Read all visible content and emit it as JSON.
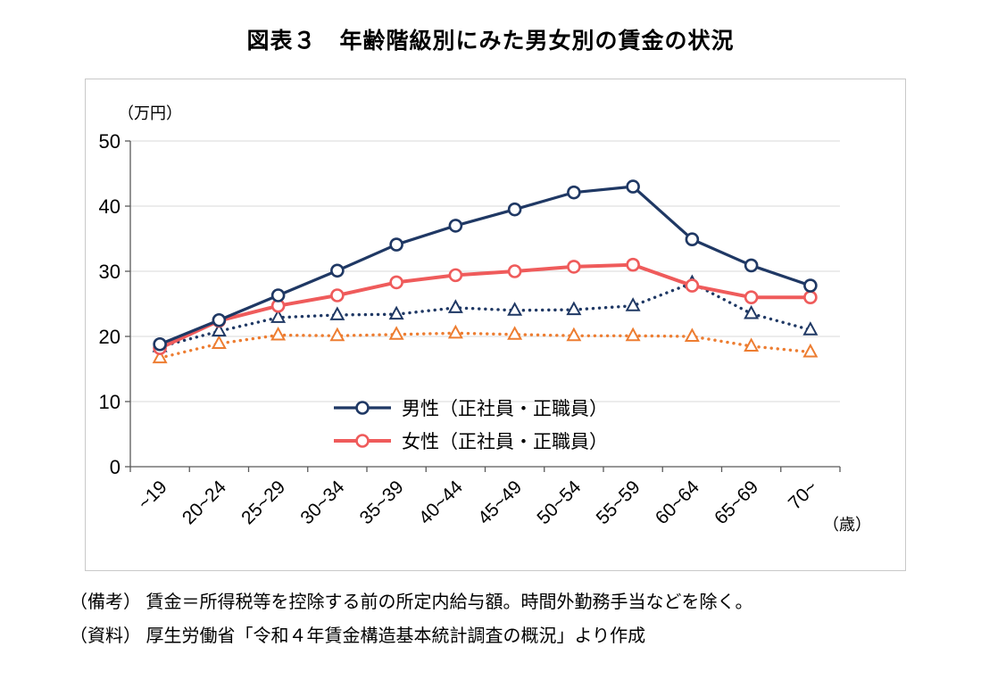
{
  "title": "図表３　年齢階級別にみた男女別の賃金の状況",
  "notes": [
    "（備考） 賃金＝所得税等を控除する前の所定内給与額。時間外勤務手当などを除く。",
    "（資料） 厚生労働省「令和４年賃金構造基本統計調査の概況」より作成"
  ],
  "chart_data": {
    "type": "line",
    "title": "図表３　年齢階級別にみた男女別の賃金の状況",
    "xlabel": "（歳）",
    "ylabel": "（万円）",
    "categories": [
      "~19",
      "20~24",
      "25~29",
      "30~34",
      "35~39",
      "40~44",
      "45~49",
      "50~54",
      "55~59",
      "60~64",
      "65~69",
      "70~"
    ],
    "ylim": [
      0,
      50
    ],
    "yticks": [
      0,
      10,
      20,
      30,
      40,
      50
    ],
    "grid": true,
    "grid_color": "#d9d9d9",
    "axis_color": "#595959",
    "legend_position": "inside-bottom-center",
    "series": [
      {
        "id": "men-regular",
        "name": "男性（正社員・正職員）",
        "color": "#1f3864",
        "style": "solid",
        "marker": "circle",
        "width": 3.2,
        "z": 4,
        "in_legend": true,
        "values": [
          18.8,
          22.5,
          26.3,
          30.1,
          34.1,
          37.0,
          39.5,
          42.1,
          43.0,
          34.9,
          30.9,
          27.8
        ]
      },
      {
        "id": "women-regular",
        "name": "女性（正社員・正職員）",
        "color": "#ef5b5b",
        "style": "solid",
        "marker": "circle",
        "width": 4,
        "z": 3,
        "in_legend": true,
        "values": [
          18.2,
          22.4,
          24.7,
          26.3,
          28.3,
          29.4,
          30.0,
          30.7,
          31.0,
          27.8,
          26.0,
          26.0
        ]
      },
      {
        "id": "men-nonregular",
        "name": "",
        "color": "#1f3864",
        "style": "dotted",
        "marker": "triangle",
        "width": 3.4,
        "z": 2,
        "in_legend": false,
        "values": [
          18.4,
          20.8,
          22.9,
          23.3,
          23.4,
          24.4,
          24.0,
          24.1,
          24.7,
          28.2,
          23.5,
          21.0
        ]
      },
      {
        "id": "women-nonregular",
        "name": "",
        "color": "#ed7d31",
        "style": "dotted",
        "marker": "triangle",
        "width": 3.4,
        "z": 1,
        "in_legend": false,
        "values": [
          16.7,
          18.9,
          20.2,
          20.1,
          20.3,
          20.5,
          20.3,
          20.1,
          20.1,
          20.0,
          18.5,
          17.6
        ]
      }
    ]
  }
}
